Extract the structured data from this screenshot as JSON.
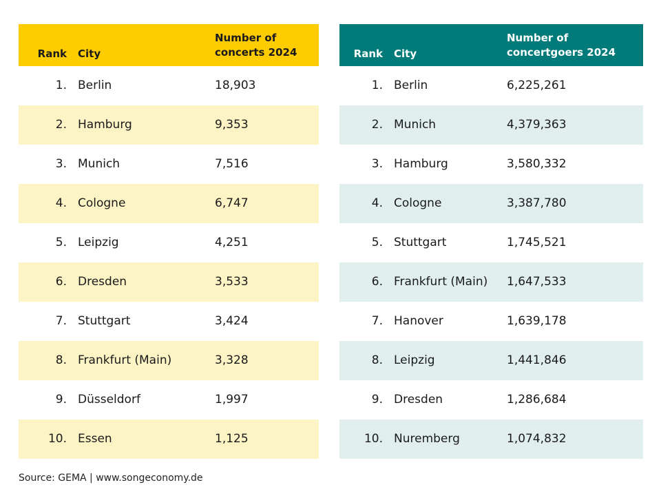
{
  "chart_data": [
    {
      "type": "table",
      "columns": [
        "Rank",
        "City",
        "Number of concerts 2024"
      ],
      "header_value_lines": [
        "Number of",
        "concerts 2024"
      ],
      "rows": [
        {
          "rank": "1.",
          "city": "Berlin",
          "value": "18,903"
        },
        {
          "rank": "2.",
          "city": "Hamburg",
          "value": "9,353"
        },
        {
          "rank": "3.",
          "city": "Munich",
          "value": "7,516"
        },
        {
          "rank": "4.",
          "city": "Cologne",
          "value": "6,747"
        },
        {
          "rank": "5.",
          "city": "Leipzig",
          "value": "4,251"
        },
        {
          "rank": "6.",
          "city": "Dresden",
          "value": "3,533"
        },
        {
          "rank": "7.",
          "city": "Stuttgart",
          "value": "3,424"
        },
        {
          "rank": "8.",
          "city": "Frankfurt (Main)",
          "value": "3,328"
        },
        {
          "rank": "9.",
          "city": "Düsseldorf",
          "value": "1,997"
        },
        {
          "rank": "10.",
          "city": "Essen",
          "value": "1,125"
        }
      ],
      "header_color": "#ffcc00",
      "alt_row_color": "#fdf4c6"
    },
    {
      "type": "table",
      "columns": [
        "Rank",
        "City",
        "Number of concertgoers 2024"
      ],
      "header_value_lines": [
        "Number of",
        "concertgoers 2024"
      ],
      "rows": [
        {
          "rank": "1.",
          "city": "Berlin",
          "value": "6,225,261"
        },
        {
          "rank": "2.",
          "city": "Munich",
          "value": "4,379,363"
        },
        {
          "rank": "3.",
          "city": "Hamburg",
          "value": "3,580,332"
        },
        {
          "rank": "4.",
          "city": "Cologne",
          "value": "3,387,780"
        },
        {
          "rank": "5.",
          "city": "Stuttgart",
          "value": "1,745,521"
        },
        {
          "rank": "6.",
          "city": "Frankfurt (Main)",
          "value": "1,647,533"
        },
        {
          "rank": "7.",
          "city": "Hanover",
          "value": "1,639,178"
        },
        {
          "rank": "8.",
          "city": "Leipzig",
          "value": "1,441,846"
        },
        {
          "rank": "9.",
          "city": "Dresden",
          "value": "1,286,684"
        },
        {
          "rank": "10.",
          "city": "Nuremberg",
          "value": "1,074,832"
        }
      ],
      "header_color": "#007b7a",
      "alt_row_color": "#e0eeee"
    }
  ],
  "source": "Source: GEMA | www.songeconomy.de"
}
